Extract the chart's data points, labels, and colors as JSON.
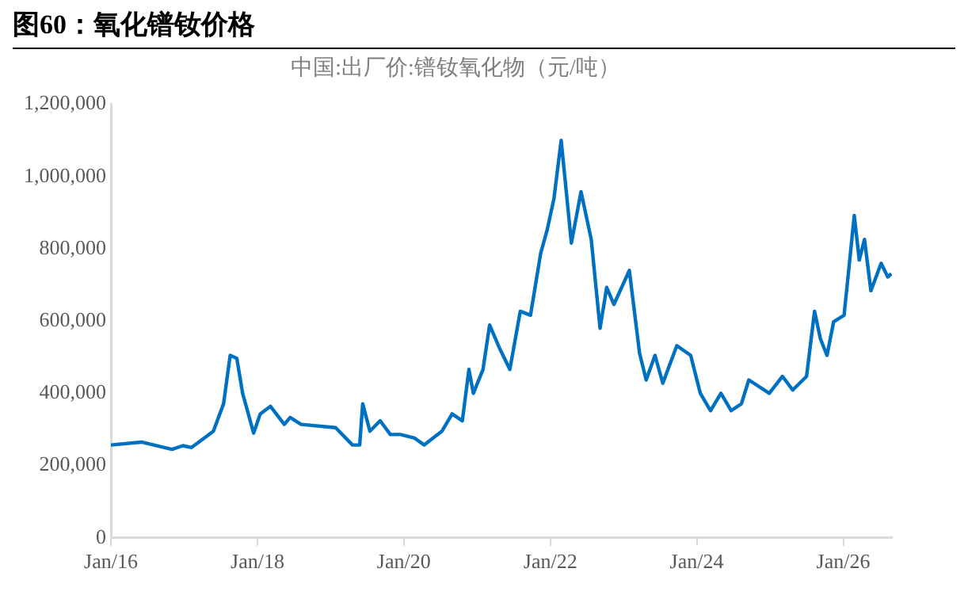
{
  "chart_data": {
    "type": "line",
    "title": "图60：氧化镨钕价格",
    "subtitle": "中国:出厂价:镨钕氧化物（元/吨）",
    "x": [
      "2016-01-01",
      "2016-06-01",
      "2016-11-01",
      "2016-12-25",
      "2017-02-06",
      "2017-05-26",
      "2017-07-16",
      "2017-08-18",
      "2017-09-20",
      "2017-10-19",
      "2017-12-13",
      "2018-01-15",
      "2018-03-07",
      "2018-05-15",
      "2018-06-13",
      "2018-08-07",
      "2019-01-26",
      "2019-04-20",
      "2019-05-26",
      "2019-06-10",
      "2019-07-16",
      "2019-09-05",
      "2019-10-26",
      "2019-12-16",
      "2020-02-24",
      "2020-04-12",
      "2020-07-09",
      "2020-08-29",
      "2020-10-19",
      "2020-11-21",
      "2020-12-13",
      "2021-01-30",
      "2021-03-04",
      "2021-04-24",
      "2021-06-13",
      "2021-08-04",
      "2021-09-24",
      "2021-11-14",
      "2021-12-17",
      "2022-01-19",
      "2022-02-24",
      "2022-04-16",
      "2022-06-03",
      "2022-07-24",
      "2022-09-06",
      "2022-10-09",
      "2022-11-14",
      "2023-01-30",
      "2023-03-22",
      "2023-04-24",
      "2023-06-07",
      "2023-07-16",
      "2023-09-24",
      "2023-12-02",
      "2024-01-19",
      "2024-03-10",
      "2024-05-01",
      "2024-06-21",
      "2024-08-11",
      "2024-09-17",
      "2024-12-28",
      "2025-03-04",
      "2025-04-24",
      "2025-07-02",
      "2025-08-11",
      "2025-09-09",
      "2025-10-12",
      "2025-11-14",
      "2026-01-05",
      "2026-01-23",
      "2026-02-25",
      "2026-03-22",
      "2026-04-17",
      "2026-05-19",
      "2026-07-09",
      "2026-08-11",
      "2026-08-29"
    ],
    "series": [
      {
        "color": "#0070c0",
        "values": [
          257000,
          265000,
          245000,
          255000,
          250000,
          295000,
          371000,
          505000,
          497000,
          400000,
          290000,
          343000,
          364000,
          314000,
          333000,
          314000,
          305000,
          257000,
          257000,
          371000,
          295000,
          324000,
          286000,
          286000,
          276000,
          257000,
          295000,
          343000,
          324000,
          466000,
          400000,
          466000,
          589000,
          523000,
          466000,
          627000,
          616000,
          788000,
          854000,
          939000,
          1100000,
          816000,
          958000,
          826000,
          580000,
          693000,
          646000,
          740000,
          511000,
          437000,
          505000,
          428000,
          532000,
          505000,
          400000,
          352000,
          400000,
          352000,
          371000,
          437000,
          400000,
          447000,
          409000,
          447000,
          627000,
          551000,
          505000,
          598000,
          616000,
          712000,
          892000,
          769000,
          826000,
          684000,
          760000,
          722000,
          731000
        ]
      }
    ],
    "xlim": [
      "2016-01-01",
      "2026-09-01"
    ],
    "xticks": [
      {
        "value": "2016-01-01",
        "label": "Jan/16"
      },
      {
        "value": "2018-01-01",
        "label": "Jan/18"
      },
      {
        "value": "2020-01-01",
        "label": "Jan/20"
      },
      {
        "value": "2022-01-01",
        "label": "Jan/22"
      },
      {
        "value": "2024-01-01",
        "label": "Jan/24"
      },
      {
        "value": "2026-01-01",
        "label": "Jan/26"
      }
    ],
    "ylim": [
      0,
      1200000
    ],
    "yticks": [
      0,
      {
        "value": 200000,
        "label": "200,000"
      },
      {
        "value": 400000,
        "label": "400,000"
      },
      {
        "value": 600000,
        "label": "600,000"
      },
      {
        "value": 800000,
        "label": "800,000"
      },
      {
        "value": 1000000,
        "label": "1,000,000"
      },
      {
        "value": 1200000,
        "label": "1,200,000"
      }
    ],
    "grid": false,
    "legend": false,
    "marker": "none",
    "line_style": "solid"
  }
}
